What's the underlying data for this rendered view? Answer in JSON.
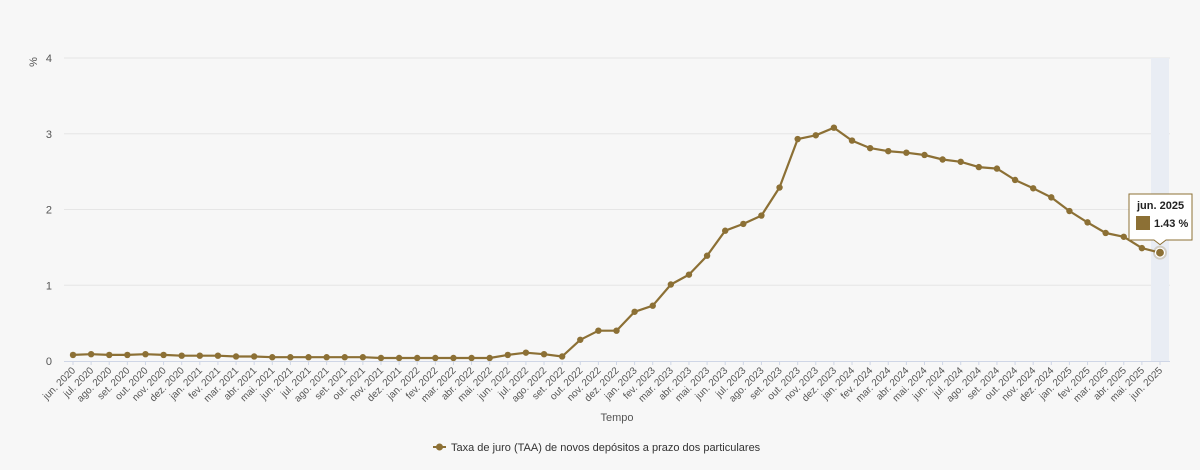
{
  "chart_data": {
    "type": "line",
    "ylabel": "%",
    "xlabel": "Tempo",
    "ylim": [
      0,
      4
    ],
    "yticks": [
      0,
      1,
      2,
      3,
      4
    ],
    "grid": true,
    "legend_position": "bottom-center",
    "categories": [
      "jun. 2020",
      "jul. 2020",
      "ago. 2020",
      "set. 2020",
      "out. 2020",
      "nov. 2020",
      "dez. 2020",
      "jan. 2021",
      "fev. 2021",
      "mar. 2021",
      "abr. 2021",
      "mai. 2021",
      "jun. 2021",
      "jul. 2021",
      "ago. 2021",
      "set. 2021",
      "out. 2021",
      "nov. 2021",
      "dez. 2021",
      "jan. 2022",
      "fev. 2022",
      "mar. 2022",
      "abr. 2022",
      "mai. 2022",
      "jun. 2022",
      "jul. 2022",
      "ago. 2022",
      "set. 2022",
      "out. 2022",
      "nov. 2022",
      "dez. 2022",
      "jan. 2023",
      "fev. 2023",
      "mar. 2023",
      "abr. 2023",
      "mai. 2023",
      "jun. 2023",
      "jul. 2023",
      "ago. 2023",
      "set. 2023",
      "out. 2023",
      "nov. 2023",
      "dez. 2023",
      "jan. 2024",
      "fev. 2024",
      "mar. 2024",
      "abr. 2024",
      "mai. 2024",
      "jun. 2024",
      "jul. 2024",
      "ago. 2024",
      "set. 2024",
      "out. 2024",
      "nov. 2024",
      "dez. 2024",
      "jan. 2025",
      "fev. 2025",
      "mar. 2025",
      "abr. 2025",
      "mai. 2025",
      "jun. 2025"
    ],
    "series": [
      {
        "name": "Taxa de juro (TAA) de novos depósitos a prazo dos particulares",
        "color": "#8c7035",
        "values": [
          0.08,
          0.09,
          0.08,
          0.08,
          0.09,
          0.08,
          0.07,
          0.07,
          0.07,
          0.06,
          0.06,
          0.05,
          0.05,
          0.05,
          0.05,
          0.05,
          0.05,
          0.04,
          0.04,
          0.04,
          0.04,
          0.04,
          0.04,
          0.04,
          0.08,
          0.11,
          0.09,
          0.06,
          0.28,
          0.4,
          0.4,
          0.65,
          0.73,
          1.01,
          1.14,
          1.39,
          1.72,
          1.81,
          1.92,
          2.29,
          2.93,
          2.98,
          3.08,
          2.91,
          2.81,
          2.77,
          2.75,
          2.72,
          2.66,
          2.63,
          2.56,
          2.54,
          2.39,
          2.28,
          2.16,
          1.98,
          1.83,
          1.69,
          1.64,
          1.49,
          1.43
        ]
      }
    ],
    "tooltip": {
      "title": "jun. 2025",
      "value_text": "1.43 %"
    },
    "highlight_band_color": "#e9edf4"
  }
}
